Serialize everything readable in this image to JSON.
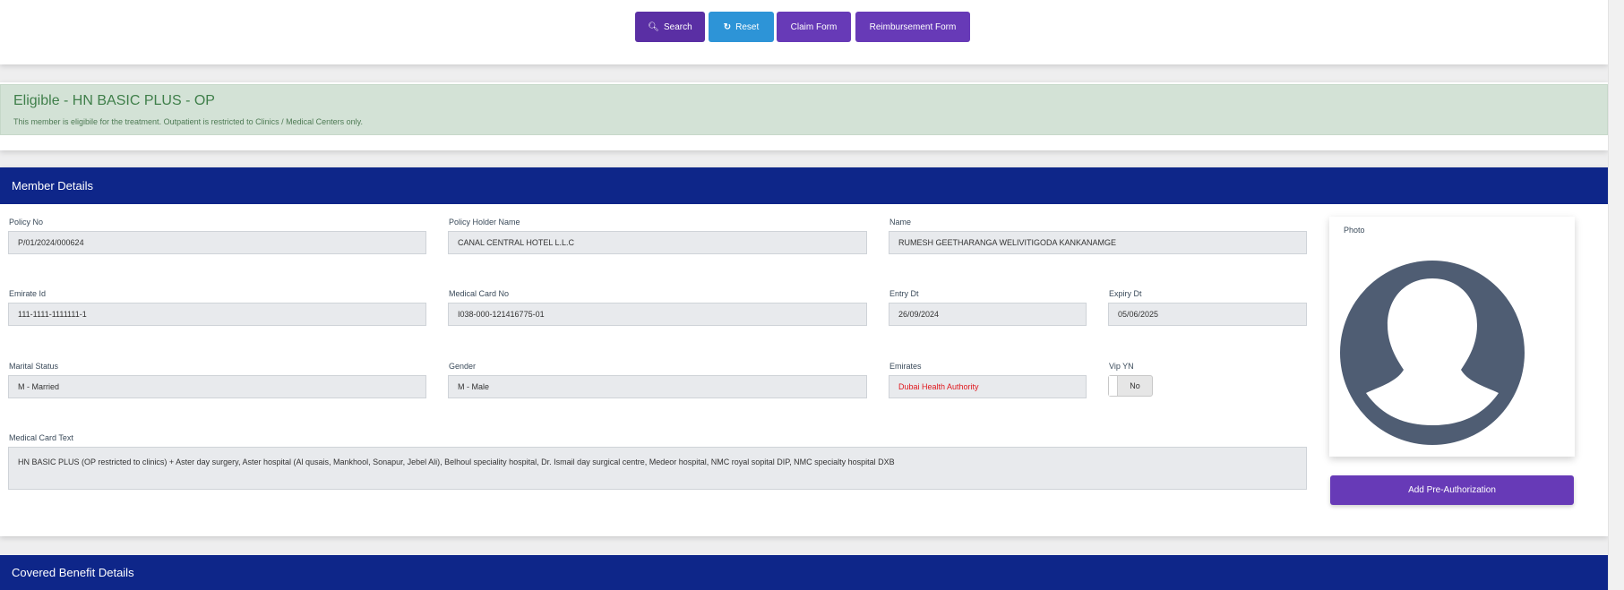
{
  "toolbar": {
    "search": "Search",
    "reset": "Reset",
    "claim_form": "Claim Form",
    "reimbursement_form": "Reimbursement Form"
  },
  "alert": {
    "title": "Eligible - HN BASIC PLUS - OP",
    "message": "This member is eligibile for the treatment. Outpatient is restricted to Clinics / Medical Centers only.",
    "color": "#d3e2d6"
  },
  "member": {
    "title": "Member Details",
    "policy_no": {
      "label": "Policy No",
      "value": "P/01/2024/000624"
    },
    "policy_holder": {
      "label": "Policy Holder Name",
      "value": "CANAL CENTRAL HOTEL L.L.C"
    },
    "name": {
      "label": "Name",
      "value": "RUMESH GEETHARANGA WELIVITIGODA KANKANAMGE"
    },
    "emirate_id": {
      "label": "Emirate Id",
      "value": "111-1111-1111111-1"
    },
    "medical_card_no": {
      "label": "Medical Card No",
      "value": "I038-000-121416775-01"
    },
    "entry_dt": {
      "label": "Entry Dt",
      "value": "26/09/2024"
    },
    "expiry_dt": {
      "label": "Expiry Dt",
      "value": "05/06/2025"
    },
    "marital_status": {
      "label": "Marital Status",
      "value": "M - Married"
    },
    "gender": {
      "label": "Gender",
      "value": "M - Male"
    },
    "emirates": {
      "label": "Emirates",
      "value": "Dubai Health Authority"
    },
    "vip": {
      "label": "Vip YN",
      "value": "No"
    },
    "medical_card_text": {
      "label": "Medical Card Text",
      "value": "HN BASIC PLUS (OP restricted to clinics) + Aster day surgery, Aster hospital (Al qusais, Mankhool, Sonapur, Jebel Ali), Belhoul speciality hospital, Dr. Ismail day surgical centre, Medeor hospital, NMC royal sopital DIP,  NMC specialty hospital DXB"
    },
    "photo_label": "Photo",
    "add_preauth": "Add Pre-Authorization"
  },
  "benefits": {
    "title": "Covered Benefit Details"
  },
  "colors": {
    "header": "#0e2689",
    "button": "#673ab7",
    "reset": "#2d94d7"
  }
}
